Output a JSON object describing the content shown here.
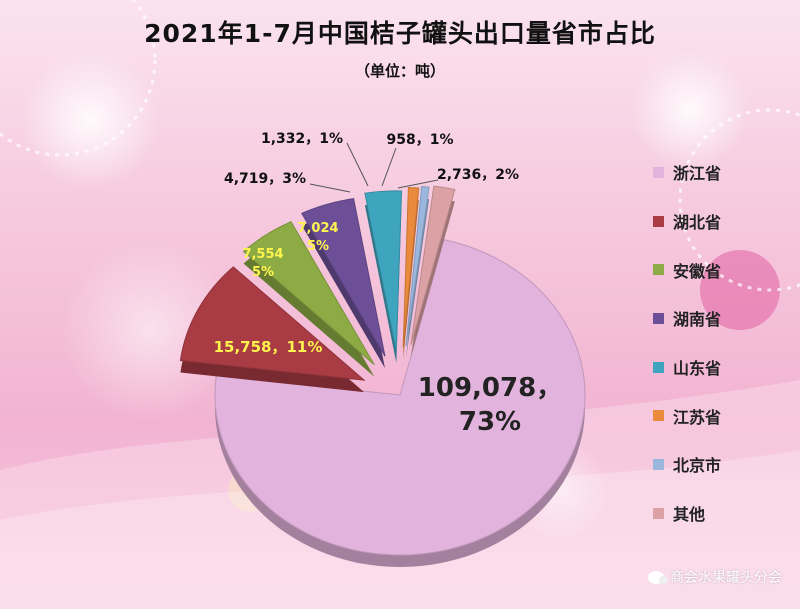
{
  "chart_data": {
    "type": "pie",
    "title": "2021年1-7月中国桔子罐头出口量省市占比",
    "subtitle": "（单位：吨）",
    "slices": [
      {
        "name": "浙江省",
        "value": 109078,
        "percent": 73,
        "color": "#e2b3dc",
        "label_line1": "109,078，",
        "label_line2": "73%"
      },
      {
        "name": "湖北省",
        "value": 15758,
        "percent": 11,
        "color": "#a83b43",
        "label_line1": "15,758，11%",
        "label_line2": ""
      },
      {
        "name": "安徽省",
        "value": 7554,
        "percent": 5,
        "color": "#8dab45",
        "label_line1": "7,554",
        "label_line2": "5%"
      },
      {
        "name": "湖南省",
        "value": 7024,
        "percent": 5,
        "color": "#6c4f97",
        "label_line1": "7,024",
        "label_line2": "5%"
      },
      {
        "name": "山东省",
        "value": 4719,
        "percent": 3,
        "color": "#3fa4bd",
        "label_line1": "4,719，3%",
        "label_line2": ""
      },
      {
        "name": "江苏省",
        "value": 1332,
        "percent": 1,
        "color": "#e98a3c",
        "label_line1": "1,332，1%",
        "label_line2": ""
      },
      {
        "name": "北京市",
        "value": 958,
        "percent": 1,
        "color": "#9bb7de",
        "label_line1": "958，1%",
        "label_line2": ""
      },
      {
        "name": "其他",
        "value": 2736,
        "percent": 2,
        "color": "#dba1a4",
        "label_line1": "2,736，2%",
        "label_line2": ""
      }
    ],
    "legend_position": "right"
  },
  "watermark": "商会水果罐头分会"
}
